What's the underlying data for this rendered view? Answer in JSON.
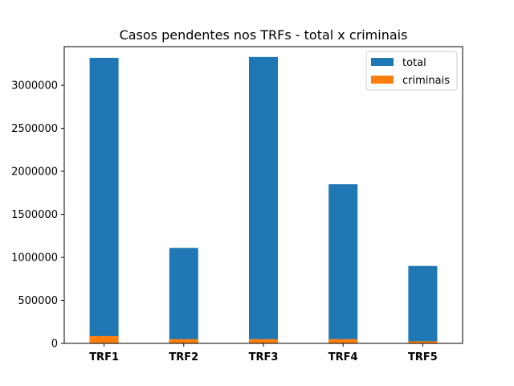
{
  "chart_data": {
    "type": "bar",
    "stacked": true,
    "title": "Casos pendentes nos TRFs - total x criminais",
    "xlabel": "",
    "ylabel": "",
    "categories": [
      "TRF1",
      "TRF2",
      "TRF3",
      "TRF4",
      "TRF5"
    ],
    "series": [
      {
        "name": "total",
        "color": "#1f77b4",
        "values": [
          3320000,
          1110000,
          3330000,
          1850000,
          900000
        ]
      },
      {
        "name": "criminais",
        "color": "#ff7f0e",
        "values": [
          85000,
          50000,
          50000,
          50000,
          25000
        ]
      }
    ],
    "ylim": [
      0,
      3450000
    ],
    "yticks": [
      0,
      500000,
      1000000,
      1500000,
      2000000,
      2500000,
      3000000
    ],
    "ytick_labels": [
      "0",
      "500000",
      "1000000",
      "1500000",
      "2000000",
      "2500000",
      "3000000"
    ],
    "grid": false,
    "legend_position": "top-right"
  }
}
